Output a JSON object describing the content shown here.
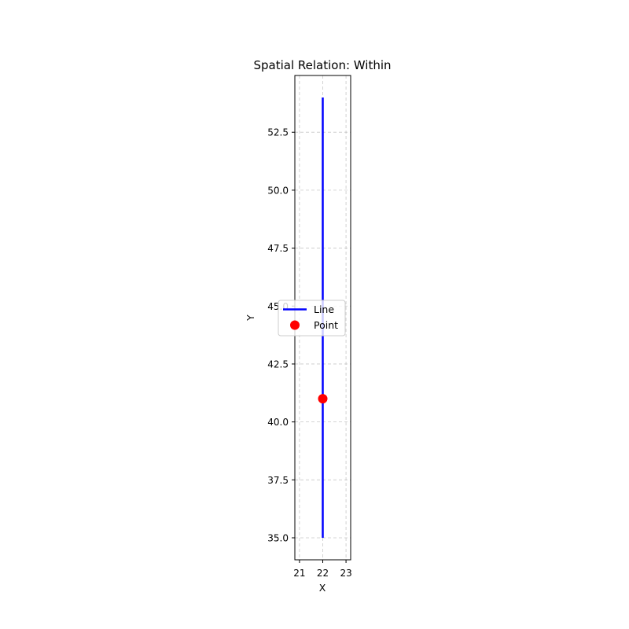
{
  "chart_data": {
    "type": "line",
    "title": "Spatial Relation: Within",
    "xlabel": "X",
    "ylabel": "Y",
    "xlim": [
      20.8,
      23.2
    ],
    "ylim": [
      34.05,
      54.95
    ],
    "xticks": [
      21,
      22,
      23
    ],
    "yticks": [
      35.0,
      37.5,
      40.0,
      42.5,
      45.0,
      47.5,
      50.0,
      52.5
    ],
    "xtick_labels": [
      "21",
      "22",
      "23"
    ],
    "ytick_labels": [
      "35.0",
      "37.5",
      "40.0",
      "42.5",
      "45.0",
      "47.5",
      "50.0",
      "52.5"
    ],
    "grid": true,
    "legend_position": "center-left",
    "series": [
      {
        "name": "Line",
        "kind": "line",
        "color": "#0000ff",
        "x": [
          22,
          22
        ],
        "y": [
          35,
          54
        ]
      },
      {
        "name": "Point",
        "kind": "scatter",
        "color": "#ff0000",
        "x": [
          22
        ],
        "y": [
          41
        ]
      }
    ]
  }
}
